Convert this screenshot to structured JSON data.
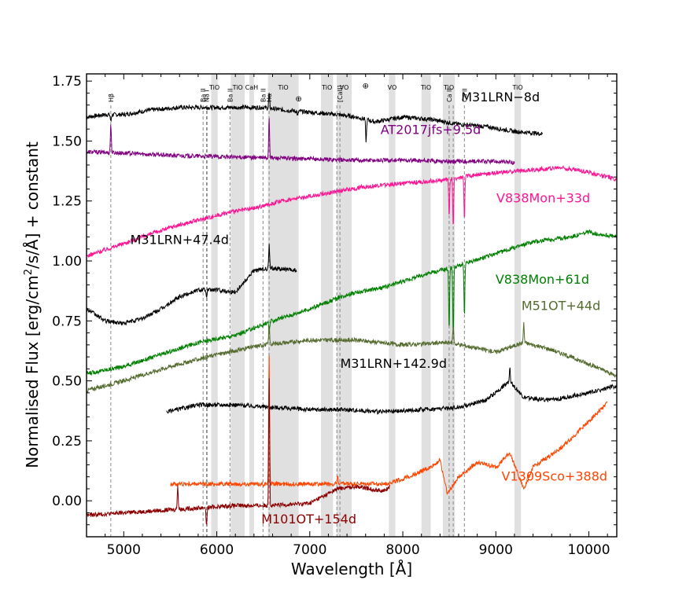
{
  "chart_data": {
    "type": "line",
    "title": "",
    "xlabel": "Wavelength [Å]",
    "ylabel_parts": [
      "Normalised Flux [erg/cm",
      "2",
      "/s/Å] + constant"
    ],
    "xlim": [
      4600,
      10300
    ],
    "ylim": [
      -0.15,
      1.78
    ],
    "xticks": [
      5000,
      6000,
      7000,
      8000,
      9000,
      10000
    ],
    "yticks": [
      0.0,
      0.25,
      0.5,
      0.75,
      1.0,
      1.25,
      1.5,
      1.75
    ],
    "ytick_labels": [
      "0.00",
      "0.25",
      "0.50",
      "0.75",
      "1.00",
      "1.25",
      "1.50",
      "1.75"
    ],
    "grid": false,
    "bands": [
      {
        "x0": 5940,
        "x1": 6010,
        "label": "TiO"
      },
      {
        "x0": 6150,
        "x1": 6300,
        "label": "TiO"
      },
      {
        "x0": 6350,
        "x1": 6400,
        "label": "CaH"
      },
      {
        "x0": 6550,
        "x1": 6880,
        "label": "TiO"
      },
      {
        "x0": 7120,
        "x1": 7250,
        "label": "TiO"
      },
      {
        "x0": 7290,
        "x1": 7450,
        "label": "VO"
      },
      {
        "x0": 7850,
        "x1": 7920,
        "label": "VO"
      },
      {
        "x0": 8200,
        "x1": 8300,
        "label": "TiO"
      },
      {
        "x0": 8430,
        "x1": 8560,
        "label": "TiO"
      },
      {
        "x0": 9200,
        "x1": 9270,
        "label": "TiO"
      }
    ],
    "lines": [
      {
        "x": 4861,
        "label": "Hβ"
      },
      {
        "x": 5853,
        "label": "Ba II"
      },
      {
        "x": 5890,
        "label": "Na I"
      },
      {
        "x": 5896,
        "label": ""
      },
      {
        "x": 6142,
        "label": "Ba II"
      },
      {
        "x": 6497,
        "label": "Ba II"
      },
      {
        "x": 6563,
        "label": "Hα"
      },
      {
        "x": 7291,
        "label": ""
      },
      {
        "x": 7324,
        "label": "[CaII]"
      },
      {
        "x": 8498,
        "label": "Ca II"
      },
      {
        "x": 8542,
        "label": ""
      },
      {
        "x": 8662,
        "label": "Ca II"
      }
    ],
    "telluric": [
      {
        "x": 6880,
        "y": 1.665,
        "label": "⊕"
      },
      {
        "x": 7600,
        "y": 1.72,
        "label": "⊕"
      }
    ],
    "series": [
      {
        "name": "M31LRN−8d",
        "color": "#000000",
        "label_x": 9050,
        "label_y": 1.665,
        "x": [
          4600,
          4800,
          5000,
          5300,
          5600,
          5900,
          6200,
          6500,
          6700,
          7000,
          7300,
          7500,
          7700,
          8000,
          8300,
          8600,
          8900,
          9200,
          9500
        ],
        "y": [
          1.6,
          1.61,
          1.61,
          1.63,
          1.64,
          1.64,
          1.64,
          1.64,
          1.63,
          1.62,
          1.61,
          1.6,
          1.58,
          1.6,
          1.59,
          1.57,
          1.56,
          1.54,
          1.53
        ],
        "features": [
          {
            "x": 4861,
            "a": -0.03
          },
          {
            "x": 6563,
            "a": 0.06
          },
          {
            "x": 7605,
            "a": -0.09
          },
          {
            "x": 6870,
            "a": -0.02
          }
        ]
      },
      {
        "name": "AT2017jfs+9.5d",
        "color": "#800080",
        "label_x": 8300,
        "label_y": 1.53,
        "x": [
          4600,
          5000,
          5500,
          6000,
          6500,
          7000,
          7500,
          8000,
          8500,
          9000,
          9200
        ],
        "y": [
          1.455,
          1.45,
          1.44,
          1.435,
          1.43,
          1.425,
          1.42,
          1.42,
          1.415,
          1.415,
          1.41
        ],
        "features": [
          {
            "x": 4861,
            "a": 0.12
          },
          {
            "x": 6563,
            "a": 0.17
          }
        ]
      },
      {
        "name": "V838Mon+33d",
        "color": "#ff1493",
        "label_x": 9510,
        "label_y": 1.245,
        "x": [
          4600,
          4900,
          5200,
          5500,
          5800,
          6100,
          6400,
          6700,
          7000,
          7300,
          7600,
          7900,
          8200,
          8500,
          8800,
          9100,
          9400,
          9700,
          10000,
          10300
        ],
        "y": [
          1.02,
          1.06,
          1.1,
          1.14,
          1.17,
          1.2,
          1.22,
          1.25,
          1.27,
          1.29,
          1.31,
          1.32,
          1.33,
          1.34,
          1.36,
          1.37,
          1.38,
          1.39,
          1.37,
          1.34
        ],
        "features": [
          {
            "x": 8498,
            "a": -0.15
          },
          {
            "x": 8542,
            "a": -0.2
          },
          {
            "x": 8662,
            "a": -0.18
          }
        ]
      },
      {
        "name": "M31LRN+47.4d",
        "color": "#000000",
        "label_x": 5600,
        "label_y": 1.07,
        "x": [
          4600,
          4800,
          5000,
          5200,
          5400,
          5600,
          5800,
          6000,
          6200,
          6400,
          6600,
          6860
        ],
        "y": [
          0.8,
          0.75,
          0.74,
          0.76,
          0.8,
          0.85,
          0.88,
          0.88,
          0.87,
          0.96,
          0.97,
          0.96
        ],
        "features": [
          {
            "x": 6563,
            "a": 0.1
          },
          {
            "x": 5890,
            "a": -0.04
          }
        ]
      },
      {
        "name": "V838Mon+61d",
        "color": "#008000",
        "label_x": 9500,
        "label_y": 0.905,
        "x": [
          4600,
          5000,
          5400,
          5800,
          6200,
          6600,
          7000,
          7400,
          7800,
          8200,
          8600,
          9000,
          9400,
          9800,
          10000,
          10300
        ],
        "y": [
          0.53,
          0.56,
          0.61,
          0.66,
          0.69,
          0.75,
          0.8,
          0.86,
          0.89,
          0.94,
          0.98,
          1.03,
          1.08,
          1.1,
          1.12,
          1.1
        ],
        "features": [
          {
            "x": 8498,
            "a": -0.25
          },
          {
            "x": 8542,
            "a": -0.3
          },
          {
            "x": 8662,
            "a": -0.22
          },
          {
            "x": 6563,
            "a": -0.05
          }
        ]
      },
      {
        "name": "M51OT+44d",
        "color": "#556b2f",
        "label_x": 9700,
        "label_y": 0.795,
        "x": [
          4600,
          5000,
          5500,
          6000,
          6500,
          7000,
          7500,
          8000,
          8500,
          9000,
          9300,
          9600,
          10000,
          10300
        ],
        "y": [
          0.46,
          0.5,
          0.56,
          0.61,
          0.65,
          0.67,
          0.67,
          0.65,
          0.66,
          0.62,
          0.66,
          0.63,
          0.57,
          0.52
        ],
        "features": [
          {
            "x": 6563,
            "a": 0.08
          },
          {
            "x": 8542,
            "a": 0.07
          },
          {
            "x": 9300,
            "a": 0.08
          }
        ]
      },
      {
        "name": "M31LRN+142.9d",
        "color": "#000000",
        "label_x": 7900,
        "label_y": 0.555,
        "x": [
          5460,
          5800,
          6200,
          6600,
          7000,
          7400,
          7800,
          8200,
          8600,
          8900,
          9150,
          9300,
          9600,
          10000,
          10300
        ],
        "y": [
          0.37,
          0.4,
          0.4,
          0.39,
          0.38,
          0.38,
          0.37,
          0.38,
          0.39,
          0.42,
          0.5,
          0.43,
          0.42,
          0.45,
          0.48
        ],
        "features": [
          {
            "x": 9150,
            "a": 0.06
          }
        ]
      },
      {
        "name": "V1309Sco+388d",
        "color": "#ff4500",
        "label_x": 9630,
        "label_y": 0.085,
        "x": [
          5500,
          6000,
          6500,
          7000,
          7500,
          7800,
          8000,
          8300,
          8400,
          8480,
          8600,
          8800,
          9000,
          9150,
          9300,
          9400,
          9700,
          10000,
          10200
        ],
        "y": [
          0.07,
          0.07,
          0.07,
          0.07,
          0.07,
          0.07,
          0.09,
          0.14,
          0.17,
          0.03,
          0.1,
          0.16,
          0.14,
          0.2,
          0.05,
          0.14,
          0.22,
          0.33,
          0.41
        ],
        "features": [
          {
            "x": 6563,
            "a": 0.55
          },
          {
            "x": 7300,
            "a": 0.03
          }
        ]
      },
      {
        "name": "M101OT+154d",
        "color": "#8b0000",
        "label_x": 6990,
        "label_y": -0.095,
        "x": [
          4600,
          5000,
          5400,
          5800,
          6200,
          6600,
          7000,
          7300,
          7500,
          7800,
          7860
        ],
        "y": [
          -0.06,
          -0.05,
          -0.04,
          -0.03,
          -0.02,
          -0.02,
          -0.01,
          0.05,
          0.06,
          0.04,
          0.06
        ],
        "features": [
          {
            "x": 6563,
            "a": 0.55
          },
          {
            "x": 5580,
            "a": 0.1
          },
          {
            "x": 5890,
            "a": -0.08
          }
        ]
      }
    ]
  }
}
